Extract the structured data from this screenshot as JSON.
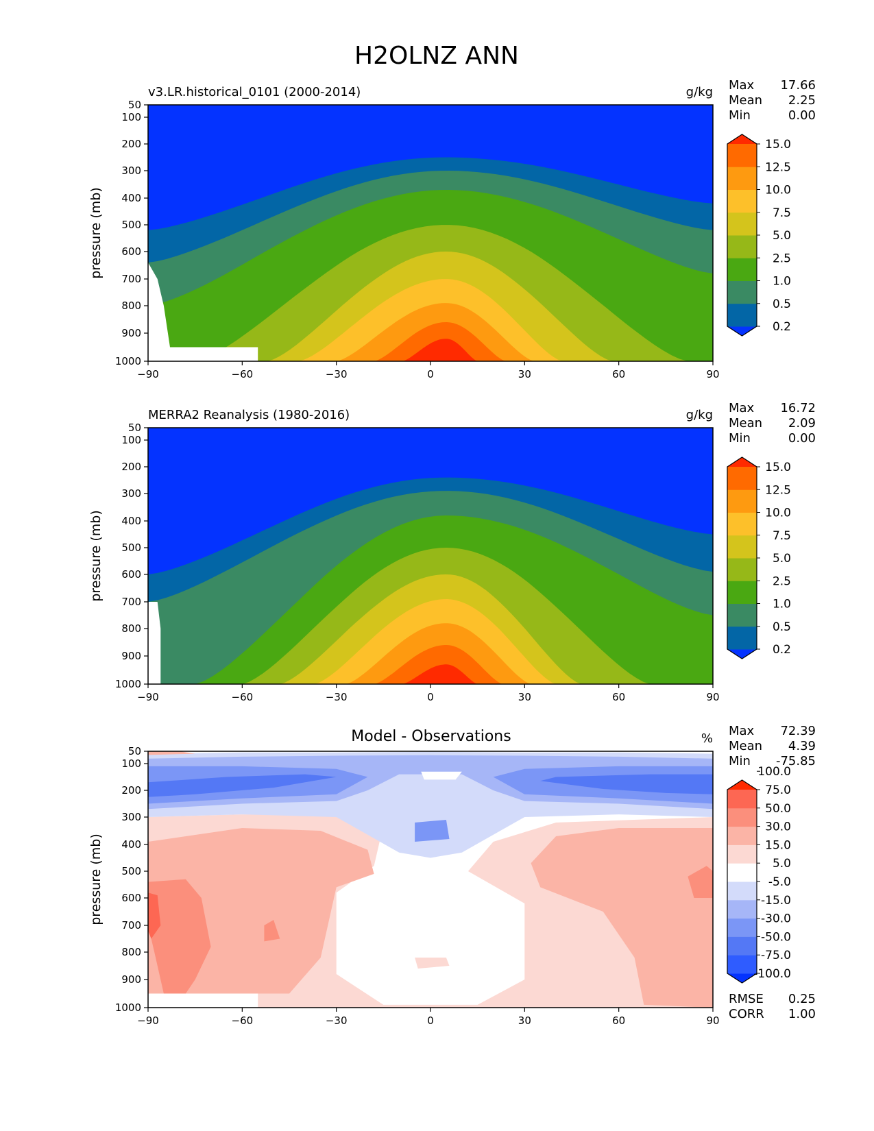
{
  "figure": {
    "title": "H2OLNZ ANN"
  },
  "chart_data": [
    {
      "type": "heatmap",
      "name": "model",
      "title": "v3.LR.historical_0101 (2000-2014)",
      "units": "g/kg",
      "ylabel": "pressure (mb)",
      "xlabel": "",
      "xlim": [
        -90,
        90
      ],
      "ylim": [
        1000,
        50
      ],
      "x_ticks": [
        "−90",
        "−60",
        "−30",
        "0",
        "30",
        "60",
        "90"
      ],
      "x_tick_values": [
        -90,
        -60,
        -30,
        0,
        30,
        60,
        90
      ],
      "y_ticks": [
        "50",
        "100",
        "200",
        "300",
        "400",
        "500",
        "600",
        "700",
        "800",
        "900",
        "1000"
      ],
      "y_tick_values": [
        50,
        100,
        200,
        300,
        400,
        500,
        600,
        700,
        800,
        900,
        1000
      ],
      "stats": [
        {
          "label": "Max",
          "value": "17.66"
        },
        {
          "label": "Mean",
          "value": "2.25"
        },
        {
          "label": "Min",
          "value": "0.00"
        }
      ],
      "colorbar": {
        "levels": [
          "0.2",
          "0.5",
          "1.0",
          "2.5",
          "5.0",
          "7.5",
          "10.0",
          "12.5",
          "15.0"
        ],
        "colors": [
          "#0433ff",
          "#0366a6",
          "#3a8a63",
          "#4aa812",
          "#96b818",
          "#d4c41c",
          "#fdc02a",
          "#fe9a10",
          "#ff6a00",
          "#ff2a00"
        ]
      },
      "contours": [
        {
          "level_index": 1,
          "min_pressure": 250,
          "edge_pressure_south": 520,
          "edge_pressure_north": 420,
          "peak_lat": 5
        },
        {
          "level_index": 2,
          "min_pressure": 300,
          "edge_pressure_south": 640,
          "edge_pressure_north": 520,
          "peak_lat": 5
        },
        {
          "level_index": 3,
          "min_pressure": 370,
          "edge_pressure_south": 800,
          "edge_pressure_north": 680,
          "peak_lat": 5
        },
        {
          "level_index": 4,
          "min_pressure": 500,
          "edge_lat_south": -75,
          "edge_lat_north": 82,
          "peak_lat": 5
        },
        {
          "level_index": 5,
          "min_pressure": 600,
          "edge_lat_south": -52,
          "edge_lat_north": 58,
          "peak_lat": 5
        },
        {
          "level_index": 6,
          "min_pressure": 700,
          "edge_lat_south": -42,
          "edge_lat_north": 42,
          "peak_lat": 5
        },
        {
          "level_index": 7,
          "min_pressure": 790,
          "edge_lat_south": -30,
          "edge_lat_north": 33,
          "peak_lat": 5
        },
        {
          "level_index": 8,
          "min_pressure": 860,
          "edge_lat_south": -18,
          "edge_lat_north": 24,
          "peak_lat": 5
        },
        {
          "level_index": 9,
          "min_pressure": 920,
          "edge_lat_south": -9,
          "edge_lat_north": 15,
          "peak_lat": 5
        }
      ]
    },
    {
      "type": "heatmap",
      "name": "observations",
      "title": "MERRA2 Reanalysis (1980-2016)",
      "units": "g/kg",
      "ylabel": "pressure (mb)",
      "xlabel": "",
      "xlim": [
        -90,
        90
      ],
      "ylim": [
        1000,
        50
      ],
      "x_ticks": [
        "−90",
        "−60",
        "−30",
        "0",
        "30",
        "60",
        "90"
      ],
      "x_tick_values": [
        -90,
        -60,
        -30,
        0,
        30,
        60,
        90
      ],
      "y_ticks": [
        "50",
        "100",
        "200",
        "300",
        "400",
        "500",
        "600",
        "700",
        "800",
        "900",
        "1000"
      ],
      "y_tick_values": [
        50,
        100,
        200,
        300,
        400,
        500,
        600,
        700,
        800,
        900,
        1000
      ],
      "stats": [
        {
          "label": "Max",
          "value": "16.72"
        },
        {
          "label": "Mean",
          "value": "2.09"
        },
        {
          "label": "Min",
          "value": "0.00"
        }
      ],
      "colorbar": {
        "levels": [
          "0.2",
          "0.5",
          "1.0",
          "2.5",
          "5.0",
          "7.5",
          "10.0",
          "12.5",
          "15.0"
        ],
        "colors": [
          "#0433ff",
          "#0366a6",
          "#3a8a63",
          "#4aa812",
          "#96b818",
          "#d4c41c",
          "#fdc02a",
          "#fe9a10",
          "#ff6a00",
          "#ff2a00"
        ]
      },
      "contours": [
        {
          "level_index": 1,
          "min_pressure": 240,
          "edge_pressure_south": 600,
          "edge_pressure_north": 450,
          "peak_lat": 5
        },
        {
          "level_index": 2,
          "min_pressure": 290,
          "edge_pressure_south": 700,
          "edge_pressure_north": 590,
          "peak_lat": 5
        },
        {
          "level_index": 3,
          "min_pressure": 380,
          "edge_lat_south": -75,
          "edge_pressure_north": 750,
          "peak_lat": 5
        },
        {
          "level_index": 4,
          "min_pressure": 500,
          "edge_lat_south": -60,
          "edge_lat_north": 70,
          "peak_lat": 5
        },
        {
          "level_index": 5,
          "min_pressure": 600,
          "edge_lat_south": -48,
          "edge_lat_north": 48,
          "peak_lat": 5
        },
        {
          "level_index": 6,
          "min_pressure": 690,
          "edge_lat_south": -37,
          "edge_lat_north": 40,
          "peak_lat": 5
        },
        {
          "level_index": 7,
          "min_pressure": 780,
          "edge_lat_south": -27,
          "edge_lat_north": 32,
          "peak_lat": 5
        },
        {
          "level_index": 8,
          "min_pressure": 860,
          "edge_lat_south": -18,
          "edge_lat_north": 23,
          "peak_lat": 5
        },
        {
          "level_index": 9,
          "min_pressure": 930,
          "edge_lat_south": -9,
          "edge_lat_north": 15,
          "peak_lat": 5
        }
      ]
    },
    {
      "type": "heatmap",
      "name": "difference",
      "title": "Model - Observations",
      "units": "%",
      "ylabel": "pressure (mb)",
      "xlabel": "",
      "xlim": [
        -90,
        90
      ],
      "ylim": [
        1000,
        50
      ],
      "x_ticks": [
        "−90",
        "−60",
        "−30",
        "0",
        "30",
        "60",
        "90"
      ],
      "x_tick_values": [
        -90,
        -60,
        -30,
        0,
        30,
        60,
        90
      ],
      "y_ticks": [
        "50",
        "100",
        "200",
        "300",
        "400",
        "500",
        "600",
        "700",
        "800",
        "900",
        "1000"
      ],
      "y_tick_values": [
        50,
        100,
        200,
        300,
        400,
        500,
        600,
        700,
        800,
        900,
        1000
      ],
      "stats": [
        {
          "label": "Max",
          "value": "72.39"
        },
        {
          "label": "Mean",
          "value": "4.39"
        },
        {
          "label": "Min",
          "value": "-75.85"
        }
      ],
      "extra_stats": [
        {
          "label": "RMSE",
          "value": "0.25"
        },
        {
          "label": "CORR",
          "value": "1.00"
        }
      ],
      "colorbar": {
        "levels": [
          "-100.0",
          "-75.0",
          "-50.0",
          "-30.0",
          "-15.0",
          "-5.0",
          "5.0",
          "15.0",
          "30.0",
          "50.0",
          "75.0",
          "100.0"
        ],
        "colors": [
          "#0433ff",
          "#2f5cff",
          "#5478f5",
          "#7b96f6",
          "#a6b6f7",
          "#d3dbfa",
          "#ffffff",
          "#fcd9d3",
          "#fbb4a6",
          "#fb8f7c",
          "#fd6753",
          "#ff2a00"
        ]
      }
    }
  ]
}
